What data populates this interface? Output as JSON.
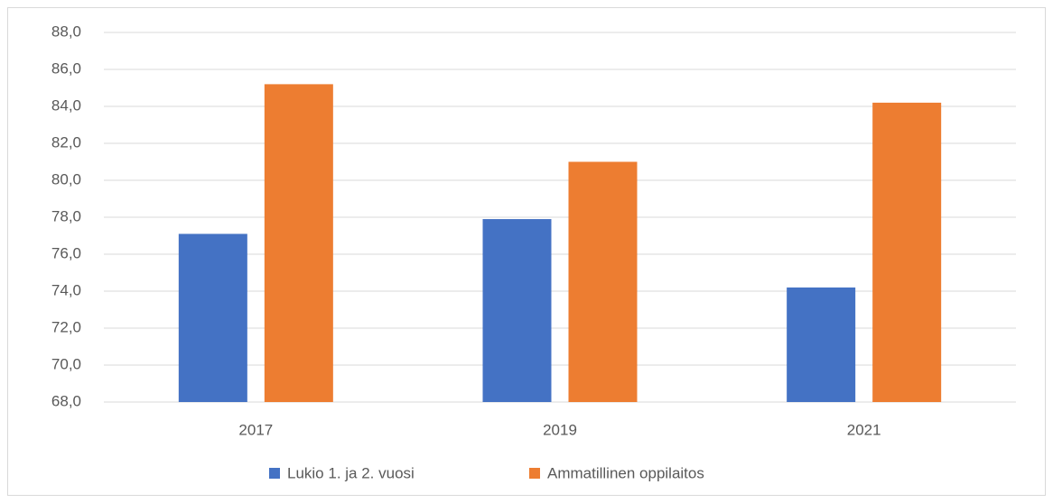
{
  "chart_data": {
    "type": "bar",
    "categories": [
      "2017",
      "2019",
      "2021"
    ],
    "series": [
      {
        "name": "Lukio 1. ja 2. vuosi",
        "color": "#4472c4",
        "values": [
          77.1,
          77.9,
          74.2
        ]
      },
      {
        "name": "Ammatillinen oppilaitos",
        "color": "#ed7d31",
        "values": [
          85.2,
          81.0,
          84.2
        ]
      }
    ],
    "ylim": [
      68,
      88
    ],
    "yticks": [
      {
        "value": 68,
        "label": "68,0"
      },
      {
        "value": 70,
        "label": "70,0"
      },
      {
        "value": 72,
        "label": "72,0"
      },
      {
        "value": 74,
        "label": "74,0"
      },
      {
        "value": 76,
        "label": "76,0"
      },
      {
        "value": 78,
        "label": "78,0"
      },
      {
        "value": 80,
        "label": "80,0"
      },
      {
        "value": 82,
        "label": "82,0"
      },
      {
        "value": 84,
        "label": "84,0"
      },
      {
        "value": 86,
        "label": "86,0"
      },
      {
        "value": 88,
        "label": "88,0"
      }
    ],
    "grid": true,
    "legend": "bottom"
  }
}
